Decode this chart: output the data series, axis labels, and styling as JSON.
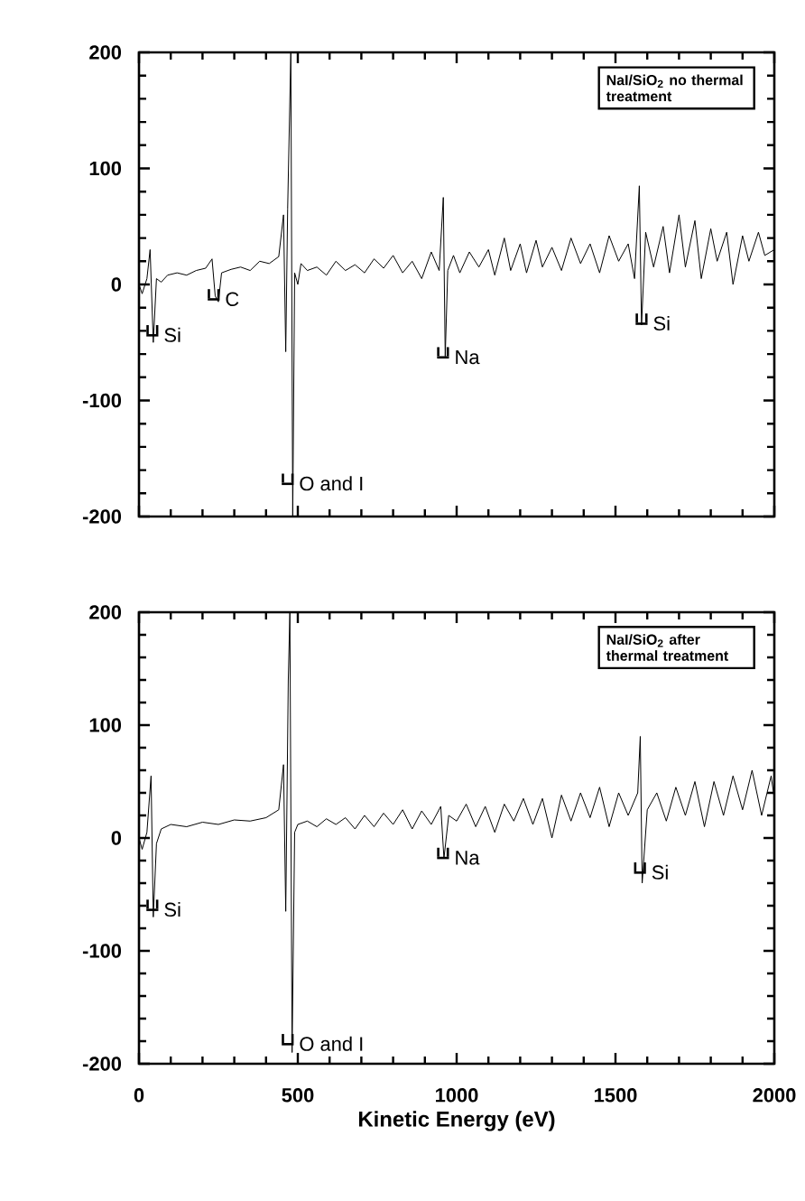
{
  "chart_data": [
    {
      "type": "line",
      "title": "NaI/SiO$_{2}$ no thermal treatment",
      "color": "#000000",
      "x": [
        0,
        10,
        25,
        35,
        45,
        55,
        70,
        90,
        120,
        150,
        180,
        210,
        230,
        240,
        250,
        260,
        290,
        320,
        350,
        380,
        410,
        440,
        455,
        462,
        468,
        478,
        484,
        490,
        500,
        510,
        530,
        560,
        590,
        620,
        650,
        680,
        710,
        740,
        770,
        800,
        830,
        860,
        890,
        920,
        945,
        958,
        964,
        972,
        990,
        1010,
        1040,
        1070,
        1100,
        1120,
        1150,
        1170,
        1200,
        1220,
        1250,
        1270,
        1300,
        1330,
        1360,
        1390,
        1420,
        1450,
        1480,
        1510,
        1540,
        1560,
        1575,
        1582,
        1595,
        1620,
        1650,
        1670,
        1700,
        1720,
        1750,
        1770,
        1800,
        1820,
        1850,
        1870,
        1900,
        1920,
        1950,
        1970,
        2000
      ],
      "values": [
        0,
        -8,
        5,
        30,
        -50,
        5,
        2,
        8,
        10,
        8,
        12,
        14,
        22,
        -10,
        -15,
        10,
        13,
        15,
        12,
        20,
        18,
        24,
        60,
        -58,
        65,
        200,
        -200,
        10,
        0,
        18,
        12,
        15,
        8,
        20,
        12,
        17,
        10,
        22,
        14,
        25,
        10,
        20,
        5,
        28,
        12,
        75,
        -62,
        12,
        25,
        10,
        28,
        15,
        30,
        8,
        40,
        12,
        35,
        10,
        38,
        15,
        32,
        12,
        40,
        18,
        35,
        10,
        42,
        20,
        35,
        5,
        85,
        -35,
        45,
        15,
        50,
        10,
        60,
        15,
        55,
        5,
        48,
        20,
        45,
        0,
        42,
        20,
        45,
        25,
        30
      ],
      "xlim": [
        0,
        2000
      ],
      "ylim": [
        -200,
        200
      ],
      "xticks": [
        0,
        500,
        1000,
        1500,
        2000
      ],
      "yticks": [
        -200,
        -100,
        0,
        100,
        200
      ],
      "tick_labels": "y",
      "annotations": [
        {
          "text": "Si",
          "x": 45,
          "y": -50
        },
        {
          "text": "C",
          "x": 238,
          "y": -19
        },
        {
          "text": "O and I",
          "x": 471,
          "y": -178
        },
        {
          "text": "Na",
          "x": 960,
          "y": -69
        },
        {
          "text": "Si",
          "x": 1585,
          "y": -40
        }
      ]
    },
    {
      "type": "line",
      "title": "NaI/SiO$_{2}$ after thermal treatment",
      "color": "#000000",
      "xlabel": "Kinetic Energy (eV)",
      "x": [
        0,
        10,
        25,
        38,
        45,
        55,
        70,
        100,
        150,
        200,
        250,
        300,
        350,
        400,
        440,
        455,
        462,
        470,
        475,
        482,
        490,
        500,
        530,
        560,
        590,
        620,
        650,
        680,
        710,
        740,
        770,
        800,
        830,
        860,
        890,
        920,
        950,
        960,
        975,
        1000,
        1030,
        1060,
        1090,
        1120,
        1150,
        1180,
        1210,
        1240,
        1270,
        1300,
        1330,
        1360,
        1390,
        1420,
        1450,
        1480,
        1510,
        1540,
        1570,
        1578,
        1584,
        1600,
        1630,
        1660,
        1690,
        1720,
        1750,
        1780,
        1810,
        1840,
        1870,
        1900,
        1930,
        1960,
        1990,
        2000
      ],
      "values": [
        0,
        -10,
        5,
        55,
        -70,
        -5,
        8,
        12,
        10,
        14,
        12,
        16,
        15,
        18,
        25,
        65,
        -65,
        140,
        200,
        -190,
        5,
        12,
        15,
        10,
        17,
        12,
        18,
        8,
        20,
        10,
        22,
        12,
        25,
        8,
        24,
        12,
        28,
        -18,
        20,
        15,
        30,
        10,
        28,
        5,
        30,
        15,
        35,
        12,
        35,
        0,
        38,
        15,
        40,
        18,
        45,
        10,
        40,
        20,
        40,
        90,
        -40,
        25,
        40,
        15,
        45,
        20,
        50,
        10,
        50,
        20,
        55,
        25,
        60,
        20,
        55,
        35
      ],
      "xlim": [
        0,
        2000
      ],
      "ylim": [
        -200,
        200
      ],
      "xticks": [
        0,
        500,
        1000,
        1500,
        2000
      ],
      "yticks": [
        -200,
        -100,
        0,
        100,
        200
      ],
      "annotations": [
        {
          "text": "Si",
          "x": 45,
          "y": -70
        },
        {
          "text": "O and I",
          "x": 471,
          "y": -189
        },
        {
          "text": "Na",
          "x": 960,
          "y": -24
        },
        {
          "text": "Si",
          "x": 1580,
          "y": -37
        }
      ]
    }
  ]
}
